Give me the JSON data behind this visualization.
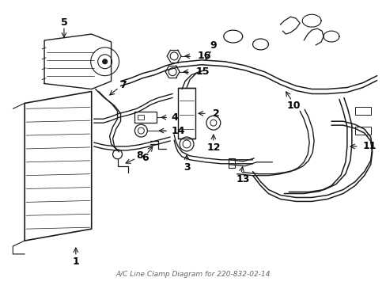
{
  "title": "A/C Line Clamp Diagram for 220-832-02-14",
  "bg_color": "#ffffff",
  "line_color": "#1a1a1a",
  "label_color": "#000000",
  "fig_width": 4.89,
  "fig_height": 3.6,
  "dpi": 100
}
